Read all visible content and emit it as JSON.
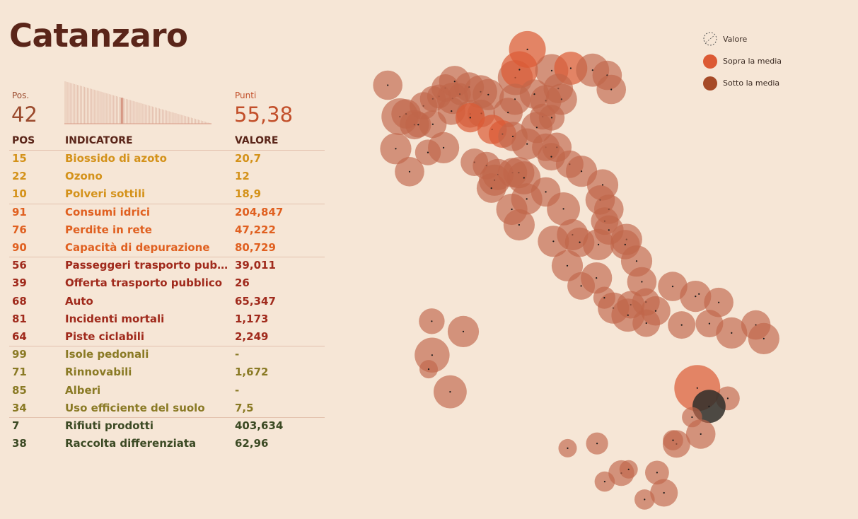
{
  "title": "Catanzaro",
  "rank": {
    "label": "Pos.",
    "value": "42"
  },
  "score": {
    "label": "Punti",
    "value": "55,38"
  },
  "columns": {
    "pos": "POS",
    "indicator": "INDICATORE",
    "value": "VALORE"
  },
  "colors": {
    "background": "#f6e6d6",
    "title": "#5a2519",
    "above_mean": "#dc5a34",
    "below_mean": "#a64a27",
    "bubble": "#c0664a",
    "highlight": "#2f2d29",
    "aria": "#d4921a",
    "acqua": "#e06020",
    "mobilita": "#a02a1c",
    "ambiente": "#8a7a25",
    "rifiuti": "#3c4a24"
  },
  "sparkline": {
    "total": 106,
    "position": 42
  },
  "indicators": [
    {
      "group": "aria",
      "pos": "15",
      "name": "Biossido di azoto",
      "value": "20,7"
    },
    {
      "group": "aria",
      "pos": "22",
      "name": "Ozono",
      "value": "12"
    },
    {
      "group": "aria",
      "pos": "10",
      "name": "Polveri sottili",
      "value": "18,9"
    },
    {
      "group": "acqua",
      "pos": "91",
      "name": "Consumi idrici",
      "value": "204,847"
    },
    {
      "group": "acqua",
      "pos": "76",
      "name": "Perdite in rete",
      "value": "47,222"
    },
    {
      "group": "acqua",
      "pos": "90",
      "name": "Capacità di depurazione",
      "value": "80,729"
    },
    {
      "group": "mobilita",
      "pos": "56",
      "name": "Passeggeri trasporto pubb...",
      "value": "39,011"
    },
    {
      "group": "mobilita",
      "pos": "39",
      "name": "Offerta trasporto pubblico",
      "value": "26"
    },
    {
      "group": "mobilita",
      "pos": "68",
      "name": "Auto",
      "value": "65,347"
    },
    {
      "group": "mobilita",
      "pos": "81",
      "name": "Incidenti mortali",
      "value": "1,173"
    },
    {
      "group": "mobilita",
      "pos": "64",
      "name": "Piste ciclabili",
      "value": "2,249"
    },
    {
      "group": "ambiente",
      "pos": "99",
      "name": "Isole pedonali",
      "value": "-"
    },
    {
      "group": "ambiente",
      "pos": "71",
      "name": "Rinnovabili",
      "value": "1,672"
    },
    {
      "group": "ambiente",
      "pos": "85",
      "name": "Alberi",
      "value": "-"
    },
    {
      "group": "ambiente",
      "pos": "34",
      "name": "Uso efficiente del suolo",
      "value": "7,5"
    },
    {
      "group": "rifiuti",
      "pos": "7",
      "name": "Rifiuti prodotti",
      "value": "403,634"
    },
    {
      "group": "rifiuti",
      "pos": "38",
      "name": "Raccolta differenziata",
      "value": "62,96"
    }
  ],
  "legend": [
    {
      "label": "Valore",
      "symbol": "dashed-circle-icon"
    },
    {
      "label": "Sopra la media",
      "symbol": "above-mean-circle-icon"
    },
    {
      "label": "Sotto la media",
      "symbol": "below-mean-circle-icon"
    }
  ],
  "chart_data": {
    "type": "bubble-map",
    "highlighted": "Catanzaro",
    "legend_position": "top-right",
    "cities": [
      {
        "lon": 7.67,
        "lat": 45.07,
        "size": 1.0,
        "cat": "below"
      },
      {
        "lon": 7.32,
        "lat": 45.74,
        "size": 0.8,
        "cat": "below"
      },
      {
        "lon": 7.85,
        "lat": 45.13,
        "size": 0.8,
        "cat": "below"
      },
      {
        "lon": 8.09,
        "lat": 44.9,
        "size": 0.8,
        "cat": "below"
      },
      {
        "lon": 8.35,
        "lat": 45.3,
        "size": 0.75,
        "cat": "below"
      },
      {
        "lon": 8.62,
        "lat": 45.45,
        "size": 0.7,
        "cat": "below"
      },
      {
        "lon": 8.8,
        "lat": 45.5,
        "size": 0.65,
        "cat": "below"
      },
      {
        "lon": 8.98,
        "lat": 45.68,
        "size": 0.75,
        "cat": "below"
      },
      {
        "lon": 9.25,
        "lat": 45.82,
        "size": 0.85,
        "cat": "below"
      },
      {
        "lon": 9.19,
        "lat": 45.46,
        "size": 0.85,
        "cat": "below"
      },
      {
        "lon": 9.4,
        "lat": 45.55,
        "size": 0.6,
        "cat": "below"
      },
      {
        "lon": 9.67,
        "lat": 45.7,
        "size": 0.8,
        "cat": "below"
      },
      {
        "lon": 10.0,
        "lat": 45.6,
        "size": 0.9,
        "cat": "below"
      },
      {
        "lon": 10.22,
        "lat": 45.54,
        "size": 0.85,
        "cat": "below"
      },
      {
        "lon": 11.0,
        "lat": 45.9,
        "size": 0.95,
        "cat": "below"
      },
      {
        "lon": 11.35,
        "lat": 46.5,
        "size": 1.0,
        "cat": "above"
      },
      {
        "lon": 11.12,
        "lat": 46.07,
        "size": 1.0,
        "cat": "above"
      },
      {
        "lon": 12.05,
        "lat": 46.05,
        "size": 0.9,
        "cat": "below"
      },
      {
        "lon": 12.6,
        "lat": 46.1,
        "size": 0.9,
        "cat": "above"
      },
      {
        "lon": 13.23,
        "lat": 46.06,
        "size": 0.9,
        "cat": "below"
      },
      {
        "lon": 13.65,
        "lat": 45.95,
        "size": 0.8,
        "cat": "below"
      },
      {
        "lon": 13.77,
        "lat": 45.65,
        "size": 0.8,
        "cat": "below"
      },
      {
        "lon": 12.24,
        "lat": 45.67,
        "size": 0.8,
        "cat": "below"
      },
      {
        "lon": 12.33,
        "lat": 45.44,
        "size": 0.85,
        "cat": "below"
      },
      {
        "lon": 11.88,
        "lat": 45.41,
        "size": 0.85,
        "cat": "below"
      },
      {
        "lon": 11.55,
        "lat": 45.55,
        "size": 0.8,
        "cat": "below"
      },
      {
        "lon": 10.99,
        "lat": 45.44,
        "size": 0.85,
        "cat": "below"
      },
      {
        "lon": 10.79,
        "lat": 45.16,
        "size": 0.8,
        "cat": "below"
      },
      {
        "lon": 11.79,
        "lat": 45.07,
        "size": 0.7,
        "cat": "below"
      },
      {
        "lon": 12.05,
        "lat": 45.05,
        "size": 0.7,
        "cat": "below"
      },
      {
        "lon": 9.7,
        "lat": 45.13,
        "size": 0.75,
        "cat": "below"
      },
      {
        "lon": 10.02,
        "lat": 45.14,
        "size": 0.75,
        "cat": "below"
      },
      {
        "lon": 9.16,
        "lat": 45.19,
        "size": 0.75,
        "cat": "below"
      },
      {
        "lon": 8.62,
        "lat": 44.91,
        "size": 0.75,
        "cat": "below"
      },
      {
        "lon": 8.2,
        "lat": 44.9,
        "size": 0.7,
        "cat": "below"
      },
      {
        "lon": 7.55,
        "lat": 44.39,
        "size": 0.85,
        "cat": "below"
      },
      {
        "lon": 7.95,
        "lat": 43.9,
        "size": 0.8,
        "cat": "below"
      },
      {
        "lon": 8.48,
        "lat": 44.31,
        "size": 0.7,
        "cat": "below"
      },
      {
        "lon": 8.93,
        "lat": 44.41,
        "size": 0.85,
        "cat": "below"
      },
      {
        "lon": 9.82,
        "lat": 44.1,
        "size": 0.75,
        "cat": "below"
      },
      {
        "lon": 9.7,
        "lat": 45.05,
        "size": 0.8,
        "cat": "above"
      },
      {
        "lon": 10.33,
        "lat": 44.8,
        "size": 0.8,
        "cat": "above"
      },
      {
        "lon": 10.63,
        "lat": 44.7,
        "size": 0.75,
        "cat": "above"
      },
      {
        "lon": 10.93,
        "lat": 44.65,
        "size": 0.8,
        "cat": "below"
      },
      {
        "lon": 11.34,
        "lat": 44.49,
        "size": 0.85,
        "cat": "below"
      },
      {
        "lon": 11.62,
        "lat": 44.84,
        "size": 0.85,
        "cat": "below"
      },
      {
        "lon": 11.88,
        "lat": 44.42,
        "size": 0.75,
        "cat": "below"
      },
      {
        "lon": 12.2,
        "lat": 44.42,
        "size": 0.8,
        "cat": "below"
      },
      {
        "lon": 12.04,
        "lat": 44.22,
        "size": 0.75,
        "cat": "below"
      },
      {
        "lon": 12.57,
        "lat": 44.06,
        "size": 0.75,
        "cat": "below"
      },
      {
        "lon": 10.17,
        "lat": 44.03,
        "size": 0.75,
        "cat": "below"
      },
      {
        "lon": 10.5,
        "lat": 43.84,
        "size": 0.85,
        "cat": "below"
      },
      {
        "lon": 10.92,
        "lat": 43.88,
        "size": 0.8,
        "cat": "below"
      },
      {
        "lon": 11.1,
        "lat": 43.88,
        "size": 0.85,
        "cat": "below"
      },
      {
        "lon": 11.25,
        "lat": 43.77,
        "size": 0.9,
        "cat": "below"
      },
      {
        "lon": 10.4,
        "lat": 43.72,
        "size": 0.85,
        "cat": "below"
      },
      {
        "lon": 10.31,
        "lat": 43.55,
        "size": 0.8,
        "cat": "below"
      },
      {
        "lon": 11.88,
        "lat": 43.47,
        "size": 0.8,
        "cat": "below"
      },
      {
        "lon": 11.33,
        "lat": 43.32,
        "size": 0.85,
        "cat": "below"
      },
      {
        "lon": 10.9,
        "lat": 43.1,
        "size": 0.85,
        "cat": "below"
      },
      {
        "lon": 11.11,
        "lat": 42.77,
        "size": 0.85,
        "cat": "below"
      },
      {
        "lon": 12.91,
        "lat": 43.91,
        "size": 0.85,
        "cat": "below"
      },
      {
        "lon": 13.52,
        "lat": 43.62,
        "size": 0.85,
        "cat": "below"
      },
      {
        "lon": 13.45,
        "lat": 43.3,
        "size": 0.8,
        "cat": "below"
      },
      {
        "lon": 13.7,
        "lat": 43.1,
        "size": 0.8,
        "cat": "below"
      },
      {
        "lon": 13.58,
        "lat": 42.85,
        "size": 0.75,
        "cat": "below"
      },
      {
        "lon": 12.39,
        "lat": 43.11,
        "size": 0.9,
        "cat": "below"
      },
      {
        "lon": 12.65,
        "lat": 42.56,
        "size": 0.85,
        "cat": "below"
      },
      {
        "lon": 12.1,
        "lat": 42.42,
        "size": 0.85,
        "cat": "below"
      },
      {
        "lon": 12.86,
        "lat": 42.4,
        "size": 0.8,
        "cat": "below"
      },
      {
        "lon": 12.5,
        "lat": 41.9,
        "size": 0.85,
        "cat": "below"
      },
      {
        "lon": 12.9,
        "lat": 41.47,
        "size": 0.75,
        "cat": "below"
      },
      {
        "lon": 13.34,
        "lat": 41.64,
        "size": 0.85,
        "cat": "below"
      },
      {
        "lon": 13.7,
        "lat": 42.66,
        "size": 0.8,
        "cat": "below"
      },
      {
        "lon": 13.4,
        "lat": 42.35,
        "size": 0.85,
        "cat": "below"
      },
      {
        "lon": 14.21,
        "lat": 42.46,
        "size": 0.85,
        "cat": "below"
      },
      {
        "lon": 14.17,
        "lat": 42.35,
        "size": 0.8,
        "cat": "below"
      },
      {
        "lon": 14.5,
        "lat": 42.0,
        "size": 0.85,
        "cat": "below"
      },
      {
        "lon": 14.65,
        "lat": 41.56,
        "size": 0.8,
        "cat": "below"
      },
      {
        "lon": 13.83,
        "lat": 41.0,
        "size": 0.85,
        "cat": "below"
      },
      {
        "lon": 14.33,
        "lat": 41.07,
        "size": 0.75,
        "cat": "below"
      },
      {
        "lon": 14.25,
        "lat": 40.85,
        "size": 0.9,
        "cat": "below"
      },
      {
        "lon": 14.78,
        "lat": 40.68,
        "size": 0.75,
        "cat": "below"
      },
      {
        "lon": 13.57,
        "lat": 41.22,
        "size": 0.6,
        "cat": "below"
      },
      {
        "lon": 14.77,
        "lat": 41.13,
        "size": 0.75,
        "cat": "below"
      },
      {
        "lon": 15.05,
        "lat": 40.94,
        "size": 0.8,
        "cat": "below"
      },
      {
        "lon": 15.54,
        "lat": 41.46,
        "size": 0.8,
        "cat": "below"
      },
      {
        "lon": 15.8,
        "lat": 40.64,
        "size": 0.75,
        "cat": "below"
      },
      {
        "lon": 16.2,
        "lat": 41.25,
        "size": 0.85,
        "cat": "below"
      },
      {
        "lon": 16.3,
        "lat": 41.3,
        "size": 0.6,
        "cat": "none"
      },
      {
        "lon": 16.6,
        "lat": 40.67,
        "size": 0.75,
        "cat": "below"
      },
      {
        "lon": 16.87,
        "lat": 41.12,
        "size": 0.8,
        "cat": "below"
      },
      {
        "lon": 17.24,
        "lat": 40.47,
        "size": 0.85,
        "cat": "below"
      },
      {
        "lon": 17.94,
        "lat": 40.64,
        "size": 0.8,
        "cat": "below"
      },
      {
        "lon": 18.17,
        "lat": 40.35,
        "size": 0.85,
        "cat": "below"
      },
      {
        "lon": 16.25,
        "lat": 39.3,
        "size": 1.25,
        "cat": "above"
      },
      {
        "lon": 17.13,
        "lat": 39.08,
        "size": 0.65,
        "cat": "below"
      },
      {
        "lon": 16.59,
        "lat": 38.91,
        "size": 0.9,
        "cat": "highlight"
      },
      {
        "lon": 16.1,
        "lat": 38.68,
        "size": 0.55,
        "cat": "below"
      },
      {
        "lon": 16.35,
        "lat": 38.32,
        "size": 0.8,
        "cat": "below"
      },
      {
        "lon": 15.65,
        "lat": 38.11,
        "size": 0.75,
        "cat": "below"
      },
      {
        "lon": 15.55,
        "lat": 38.19,
        "size": 0.55,
        "cat": "below"
      },
      {
        "lon": 13.36,
        "lat": 38.12,
        "size": 0.6,
        "cat": "below"
      },
      {
        "lon": 12.51,
        "lat": 38.02,
        "size": 0.5,
        "cat": "below"
      },
      {
        "lon": 13.58,
        "lat": 37.31,
        "size": 0.55,
        "cat": "below"
      },
      {
        "lon": 14.06,
        "lat": 37.49,
        "size": 0.7,
        "cat": "below"
      },
      {
        "lon": 14.27,
        "lat": 37.57,
        "size": 0.5,
        "cat": "below"
      },
      {
        "lon": 15.09,
        "lat": 37.5,
        "size": 0.65,
        "cat": "below"
      },
      {
        "lon": 14.73,
        "lat": 36.93,
        "size": 0.55,
        "cat": "below"
      },
      {
        "lon": 15.29,
        "lat": 37.07,
        "size": 0.75,
        "cat": "below"
      },
      {
        "lon": 9.12,
        "lat": 39.22,
        "size": 0.9,
        "cat": "below"
      },
      {
        "lon": 8.59,
        "lat": 40.72,
        "size": 0.7,
        "cat": "below"
      },
      {
        "lon": 9.5,
        "lat": 40.5,
        "size": 0.85,
        "cat": "below"
      },
      {
        "lon": 8.6,
        "lat": 40.0,
        "size": 0.95,
        "cat": "below"
      },
      {
        "lon": 8.5,
        "lat": 39.7,
        "size": 0.5,
        "cat": "below"
      }
    ]
  }
}
